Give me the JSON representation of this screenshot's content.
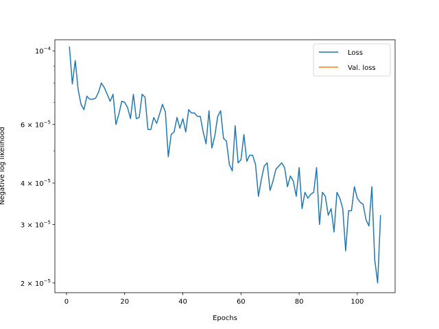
{
  "chart_data": {
    "type": "line",
    "xlabel": "Epochs",
    "ylabel": "Negative log likelihood",
    "xlim": [
      -4,
      113
    ],
    "ylim": [
      1.87e-05,
      0.000108
    ],
    "y_scale": "log",
    "grid": false,
    "legend_position": "top-right",
    "x_ticks": [
      0,
      20,
      40,
      60,
      80,
      100
    ],
    "y_ticks": [
      2e-05,
      3e-05,
      4e-05,
      6e-05,
      0.0001
    ],
    "y_tick_labels": [
      {
        "mantissa": "2",
        "exp": "−5"
      },
      {
        "mantissa": "3",
        "exp": "−5"
      },
      {
        "mantissa": "4",
        "exp": "−5"
      },
      {
        "mantissa": "6",
        "exp": "−5"
      },
      {
        "mantissa": "",
        "exp": "−4"
      }
    ],
    "series": [
      {
        "name": "Loss",
        "color": "#1f77b4",
        "x": [
          1,
          2,
          3,
          4,
          5,
          6,
          7,
          8,
          9,
          10,
          11,
          12,
          13,
          14,
          15,
          16,
          17,
          18,
          19,
          20,
          21,
          22,
          23,
          24,
          25,
          26,
          27,
          28,
          29,
          30,
          31,
          32,
          33,
          34,
          35,
          36,
          37,
          38,
          39,
          40,
          41,
          42,
          43,
          44,
          45,
          46,
          47,
          48,
          49,
          50,
          51,
          52,
          53,
          54,
          55,
          56,
          57,
          58,
          59,
          60,
          61,
          62,
          63,
          64,
          65,
          66,
          67,
          68,
          69,
          70,
          71,
          72,
          73,
          74,
          75,
          76,
          77,
          78,
          79,
          80,
          81,
          82,
          83,
          84,
          85,
          86,
          87,
          88,
          89,
          90,
          91,
          92,
          93,
          94,
          95,
          96,
          97,
          98,
          99,
          100,
          101,
          102,
          103,
          104,
          105,
          106,
          107,
          108
        ],
        "values": [
          0.000103,
          7.95e-05,
          9.35e-05,
          7.65e-05,
          6.9e-05,
          6.65e-05,
          7.3e-05,
          7.15e-05,
          7.15e-05,
          7.2e-05,
          7.5e-05,
          8e-05,
          7.75e-05,
          7.4e-05,
          7.05e-05,
          7.4e-05,
          6e-05,
          6.45e-05,
          7.05e-05,
          7e-05,
          6.75e-05,
          6.25e-05,
          7.4e-05,
          6.25e-05,
          6.3e-05,
          7.4e-05,
          7.25e-05,
          5.8e-05,
          5.8e-05,
          6.3e-05,
          6.05e-05,
          6.45e-05,
          6.9e-05,
          6.55e-05,
          4.8e-05,
          5.6e-05,
          5.7e-05,
          6.3e-05,
          5.85e-05,
          6.25e-05,
          5.7e-05,
          6.65e-05,
          6.5e-05,
          6.5e-05,
          6.35e-05,
          6.35e-05,
          5.7e-05,
          5.25e-05,
          6.6e-05,
          5.1e-05,
          5.55e-05,
          6.35e-05,
          6.6e-05,
          5.45e-05,
          5.35e-05,
          4.55e-05,
          4.35e-05,
          5.95e-05,
          4.6e-05,
          4.7e-05,
          5.6e-05,
          4.65e-05,
          4.85e-05,
          4.85e-05,
          4.55e-05,
          3.65e-05,
          4.1e-05,
          4.5e-05,
          4.6e-05,
          3.8e-05,
          4.05e-05,
          4.4e-05,
          4.5e-05,
          4.6e-05,
          4.45e-05,
          3.9e-05,
          4.2e-05,
          4.05e-05,
          3.65e-05,
          4.45e-05,
          3.35e-05,
          3.75e-05,
          3.6e-05,
          3.7e-05,
          3.75e-05,
          4.45e-05,
          3e-05,
          3.75e-05,
          3.65e-05,
          3.2e-05,
          3.35e-05,
          2.85e-05,
          3.75e-05,
          3.6e-05,
          3.35e-05,
          2.5e-05,
          3.3e-05,
          3.3e-05,
          3.9e-05,
          3.6e-05,
          3.5e-05,
          3.45e-05,
          3.1e-05,
          2.97e-05,
          3.9e-05,
          2.35e-05,
          2e-05,
          3.2e-05
        ]
      },
      {
        "name": "Val. loss",
        "color": "#ff7f0e",
        "x": [],
        "values": []
      }
    ]
  }
}
